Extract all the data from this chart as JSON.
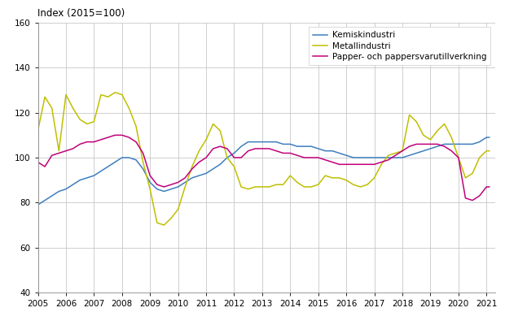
{
  "title": "Index (2015=100)",
  "ylim": [
    40,
    160
  ],
  "yticks": [
    40,
    60,
    80,
    100,
    120,
    140,
    160
  ],
  "xlim": [
    2005.0,
    2021.3
  ],
  "xticks": [
    2005,
    2006,
    2007,
    2008,
    2009,
    2010,
    2011,
    2012,
    2013,
    2014,
    2015,
    2016,
    2017,
    2018,
    2019,
    2020,
    2021
  ],
  "background_color": "#ffffff",
  "grid_color": "#c8c8c8",
  "series": {
    "Kemiskindustri": {
      "color": "#3d7ebf",
      "x": [
        2005.0,
        2005.25,
        2005.5,
        2005.75,
        2006.0,
        2006.25,
        2006.5,
        2006.75,
        2007.0,
        2007.25,
        2007.5,
        2007.75,
        2008.0,
        2008.25,
        2008.5,
        2008.75,
        2009.0,
        2009.25,
        2009.5,
        2009.75,
        2010.0,
        2010.25,
        2010.5,
        2010.75,
        2011.0,
        2011.25,
        2011.5,
        2011.75,
        2012.0,
        2012.25,
        2012.5,
        2012.75,
        2013.0,
        2013.25,
        2013.5,
        2013.75,
        2014.0,
        2014.25,
        2014.5,
        2014.75,
        2015.0,
        2015.25,
        2015.5,
        2015.75,
        2016.0,
        2016.25,
        2016.5,
        2016.75,
        2017.0,
        2017.25,
        2017.5,
        2017.75,
        2018.0,
        2018.25,
        2018.5,
        2018.75,
        2019.0,
        2019.25,
        2019.5,
        2019.75,
        2020.0,
        2020.25,
        2020.5,
        2020.75,
        2021.0,
        2021.1
      ],
      "y": [
        79,
        81,
        83,
        85,
        86,
        88,
        90,
        91,
        92,
        94,
        96,
        98,
        100,
        100,
        99,
        95,
        89,
        86,
        85,
        86,
        87,
        89,
        91,
        92,
        93,
        95,
        97,
        100,
        102,
        105,
        107,
        107,
        107,
        107,
        107,
        106,
        106,
        105,
        105,
        105,
        104,
        103,
        103,
        102,
        101,
        100,
        100,
        100,
        100,
        100,
        100,
        100,
        100,
        101,
        102,
        103,
        104,
        105,
        106,
        106,
        106,
        106,
        106,
        107,
        109,
        109
      ]
    },
    "Metallindustri": {
      "color": "#bfbf00",
      "x": [
        2005.0,
        2005.25,
        2005.5,
        2005.75,
        2006.0,
        2006.25,
        2006.5,
        2006.75,
        2007.0,
        2007.25,
        2007.5,
        2007.75,
        2008.0,
        2008.25,
        2008.5,
        2008.75,
        2009.0,
        2009.25,
        2009.5,
        2009.75,
        2010.0,
        2010.25,
        2010.5,
        2010.75,
        2011.0,
        2011.25,
        2011.5,
        2011.75,
        2012.0,
        2012.25,
        2012.5,
        2012.75,
        2013.0,
        2013.25,
        2013.5,
        2013.75,
        2014.0,
        2014.25,
        2014.5,
        2014.75,
        2015.0,
        2015.25,
        2015.5,
        2015.75,
        2016.0,
        2016.25,
        2016.5,
        2016.75,
        2017.0,
        2017.25,
        2017.5,
        2017.75,
        2018.0,
        2018.25,
        2018.5,
        2018.75,
        2019.0,
        2019.25,
        2019.5,
        2019.75,
        2020.0,
        2020.25,
        2020.5,
        2020.75,
        2021.0,
        2021.1
      ],
      "y": [
        112,
        127,
        122,
        103,
        128,
        122,
        117,
        115,
        116,
        128,
        127,
        129,
        128,
        122,
        114,
        98,
        86,
        71,
        70,
        73,
        77,
        87,
        96,
        103,
        108,
        115,
        112,
        100,
        96,
        87,
        86,
        87,
        87,
        87,
        88,
        88,
        92,
        89,
        87,
        87,
        88,
        92,
        91,
        91,
        90,
        88,
        87,
        88,
        91,
        97,
        101,
        102,
        103,
        119,
        116,
        110,
        108,
        112,
        115,
        109,
        100,
        91,
        93,
        100,
        103,
        103
      ]
    },
    "Papper- och pappersvarutillverkning": {
      "color": "#c0007a",
      "x": [
        2005.0,
        2005.25,
        2005.5,
        2005.75,
        2006.0,
        2006.25,
        2006.5,
        2006.75,
        2007.0,
        2007.25,
        2007.5,
        2007.75,
        2008.0,
        2008.25,
        2008.5,
        2008.75,
        2009.0,
        2009.25,
        2009.5,
        2009.75,
        2010.0,
        2010.25,
        2010.5,
        2010.75,
        2011.0,
        2011.25,
        2011.5,
        2011.75,
        2012.0,
        2012.25,
        2012.5,
        2012.75,
        2013.0,
        2013.25,
        2013.5,
        2013.75,
        2014.0,
        2014.25,
        2014.5,
        2014.75,
        2015.0,
        2015.25,
        2015.5,
        2015.75,
        2016.0,
        2016.25,
        2016.5,
        2016.75,
        2017.0,
        2017.25,
        2017.5,
        2017.75,
        2018.0,
        2018.25,
        2018.5,
        2018.75,
        2019.0,
        2019.25,
        2019.5,
        2019.75,
        2020.0,
        2020.25,
        2020.5,
        2020.75,
        2021.0,
        2021.1
      ],
      "y": [
        98,
        96,
        101,
        102,
        103,
        104,
        106,
        107,
        107,
        108,
        109,
        110,
        110,
        109,
        107,
        102,
        92,
        88,
        87,
        88,
        89,
        91,
        95,
        98,
        100,
        104,
        105,
        104,
        100,
        100,
        103,
        104,
        104,
        104,
        103,
        102,
        102,
        101,
        100,
        100,
        100,
        99,
        98,
        97,
        97,
        97,
        97,
        97,
        97,
        98,
        99,
        101,
        103,
        105,
        106,
        106,
        106,
        106,
        105,
        103,
        100,
        82,
        81,
        83,
        87,
        87
      ]
    }
  }
}
